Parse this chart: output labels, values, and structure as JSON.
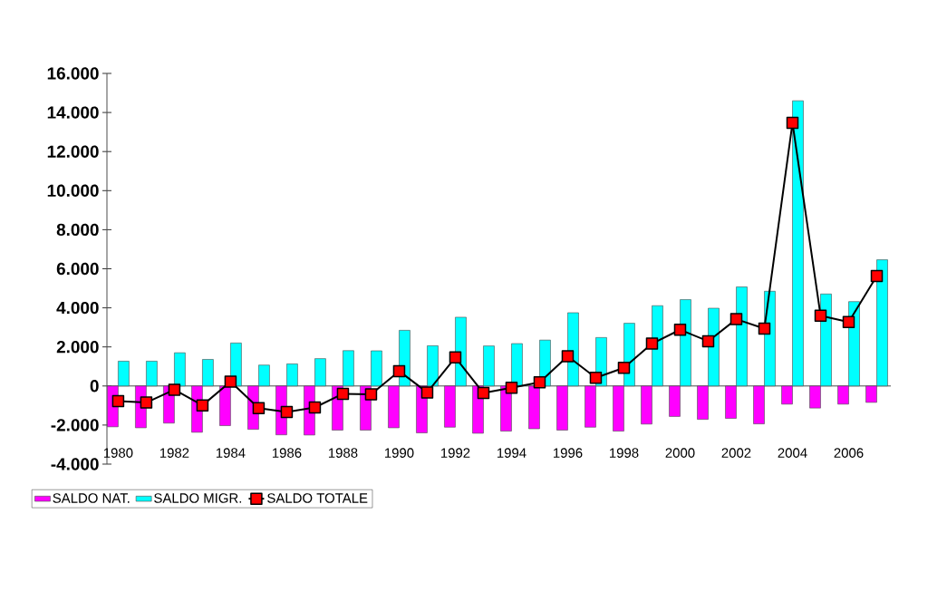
{
  "chart_data": {
    "type": "bar",
    "categories": [
      "1980",
      null,
      "1982",
      null,
      "1984",
      null,
      "1986",
      null,
      "1988",
      null,
      "1990",
      null,
      "1992",
      null,
      "1994",
      null,
      "1996",
      null,
      "1998",
      null,
      "2000",
      null,
      "2002",
      null,
      "2004",
      null,
      "2006",
      null
    ],
    "series": [
      {
        "name": "SALDO NAT.",
        "color": "#ff00ff",
        "values": [
          -2090,
          -2140,
          -1900,
          -2370,
          -2030,
          -2220,
          -2500,
          -2510,
          -2260,
          -2260,
          -2140,
          -2400,
          -2110,
          -2420,
          -2310,
          -2190,
          -2260,
          -2110,
          -2310,
          -1950,
          -1560,
          -1710,
          -1660,
          -1940,
          -930,
          -1130,
          -930,
          -840
        ]
      },
      {
        "name": "SALDO MIGR.",
        "color": "#00ffff",
        "values": [
          1270,
          1270,
          1700,
          1360,
          2200,
          1070,
          1130,
          1400,
          1810,
          1800,
          2850,
          2060,
          3520,
          2050,
          2170,
          2350,
          3750,
          2480,
          3210,
          4110,
          4420,
          3980,
          5070,
          4850,
          14600,
          4710,
          4320,
          6460
        ]
      },
      {
        "name": "SALDO TOTALE",
        "type": "line",
        "color": "#ff0000",
        "values": [
          -780,
          -850,
          -190,
          -990,
          220,
          -1130,
          -1330,
          -1100,
          -400,
          -430,
          760,
          -330,
          1460,
          -360,
          -90,
          190,
          1520,
          420,
          930,
          2170,
          2880,
          2290,
          3420,
          2940,
          13470,
          3600,
          3270,
          5630
        ]
      }
    ],
    "ylim": [
      -4000,
      16000
    ],
    "yticks": [
      {
        "value": -4000,
        "label": "-4.000"
      },
      {
        "value": -2000,
        "label": "-2.000"
      },
      {
        "value": 0,
        "label": "0"
      },
      {
        "value": 2000,
        "label": "2.000"
      },
      {
        "value": 4000,
        "label": "4.000"
      },
      {
        "value": 6000,
        "label": "6.000"
      },
      {
        "value": 8000,
        "label": "8.000"
      },
      {
        "value": 10000,
        "label": "10.000"
      },
      {
        "value": 12000,
        "label": "12.000"
      },
      {
        "value": 14000,
        "label": "14.000"
      },
      {
        "value": 16000,
        "label": "16.000"
      }
    ],
    "legend": "bottom left",
    "marker": "square",
    "line_style": "solid"
  }
}
